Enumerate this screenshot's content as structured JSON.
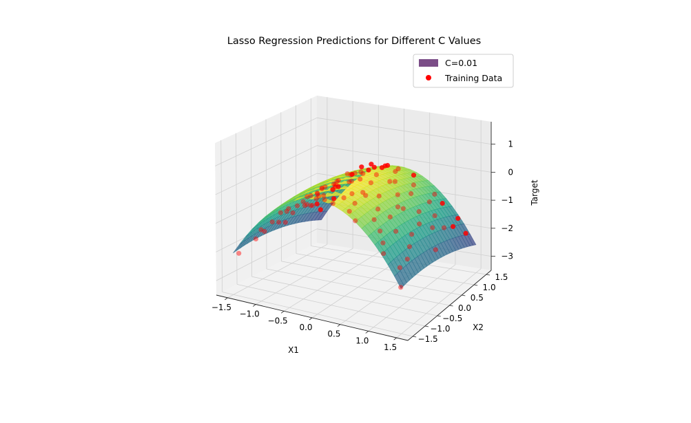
{
  "chart_data": {
    "type": "surface3d",
    "title": "Lasso Regression Predictions for Different C Values",
    "xlabel": "X1",
    "ylabel": "X2",
    "zlabel": "Target",
    "xlim": [
      -1.7,
      1.7
    ],
    "ylim": [
      -1.7,
      1.7
    ],
    "zlim": [
      -3.5,
      1.8
    ],
    "x_ticks": [
      -1.5,
      -1.0,
      -0.5,
      0.0,
      0.5,
      1.0,
      1.5
    ],
    "x_tick_labels": [
      "−1.5",
      "−1.0",
      "−0.5",
      "0.0",
      "0.5",
      "1.0",
      "1.5"
    ],
    "y_ticks": [
      -1.5,
      -1.0,
      -0.5,
      0.0,
      0.5,
      1.0,
      1.5
    ],
    "y_tick_labels": [
      "−1.5",
      "−1.0",
      "−0.5",
      "0.0",
      "0.5",
      "1.0",
      "1.5"
    ],
    "z_ticks": [
      -3,
      -2,
      -1,
      0,
      1
    ],
    "z_tick_labels": [
      "−3",
      "−2",
      "−1",
      "0",
      "1"
    ],
    "grid": true,
    "colormap": "viridis",
    "legend": {
      "placement": "top-right",
      "entries": [
        {
          "label": "C=0.01",
          "color": "#7b4d87",
          "marker": "patch"
        },
        {
          "label": "Training Data",
          "color": "#ff0000",
          "marker": "circle"
        }
      ]
    },
    "series": [
      {
        "name": "C=0.01",
        "kind": "surface",
        "surface_x_range": [
          -1.5,
          1.5
        ],
        "surface_y_range": [
          -1.5,
          1.5
        ],
        "approx_z_range": [
          -3.1,
          0.4
        ],
        "alpha": 0.7
      },
      {
        "name": "Training Data",
        "kind": "scatter",
        "color": "#ff0000",
        "points": [
          [
            -0.1,
            -1.3,
            0.2
          ],
          [
            0.0,
            -1.2,
            0.15
          ],
          [
            0.1,
            -1.1,
            0.0
          ],
          [
            -0.2,
            -0.9,
            0.3
          ],
          [
            0.15,
            -0.8,
            0.05
          ],
          [
            -0.05,
            -0.7,
            0.3
          ],
          [
            0.2,
            -0.6,
            0.1
          ],
          [
            -0.15,
            -0.5,
            0.25
          ],
          [
            0.05,
            -0.4,
            0.35
          ],
          [
            0.25,
            -0.3,
            0.0
          ],
          [
            -0.25,
            -0.2,
            0.2
          ],
          [
            0.1,
            -0.1,
            0.3
          ],
          [
            -0.1,
            0.0,
            0.35
          ],
          [
            0.2,
            0.1,
            0.1
          ],
          [
            0.0,
            0.2,
            0.3
          ],
          [
            -0.2,
            0.3,
            0.2
          ],
          [
            0.15,
            0.4,
            0.2
          ],
          [
            -0.05,
            0.5,
            0.25
          ],
          [
            0.3,
            0.6,
            -0.1
          ],
          [
            -0.3,
            0.7,
            0.0
          ],
          [
            0.05,
            0.8,
            0.2
          ],
          [
            -0.15,
            0.9,
            0.1
          ],
          [
            0.2,
            1.0,
            0.0
          ],
          [
            0.0,
            1.1,
            0.1
          ],
          [
            -0.1,
            1.2,
            0.0
          ],
          [
            0.1,
            1.3,
            -0.1
          ],
          [
            0.05,
            -1.0,
            0.4
          ],
          [
            -0.05,
            0.6,
            0.4
          ],
          [
            0.3,
            -0.9,
            -0.3
          ],
          [
            -0.3,
            -1.1,
            -0.2
          ],
          [
            -0.9,
            -1.0,
            -0.7
          ],
          [
            -1.0,
            -0.6,
            -0.9
          ],
          [
            -1.1,
            -0.2,
            -1.2
          ],
          [
            -0.8,
            0.1,
            -0.6
          ],
          [
            -1.2,
            0.4,
            -1.3
          ],
          [
            -0.7,
            0.6,
            -0.4
          ],
          [
            -0.9,
            0.9,
            -0.8
          ],
          [
            -1.0,
            1.2,
            -1.0
          ],
          [
            -0.6,
            -1.3,
            -0.3
          ],
          [
            -1.3,
            -0.8,
            -1.6
          ],
          [
            -1.3,
            1.0,
            -1.6
          ],
          [
            -1.1,
            -1.3,
            -1.2
          ],
          [
            -0.8,
            -0.4,
            -0.6
          ],
          [
            -0.6,
            0.3,
            -0.3
          ],
          [
            -0.5,
            1.1,
            -0.1
          ],
          [
            -1.2,
            -0.5,
            -1.4
          ],
          [
            -0.7,
            -0.8,
            -0.5
          ],
          [
            -0.9,
            0.5,
            -0.9
          ],
          [
            -1.4,
            0.1,
            -1.8
          ],
          [
            -0.5,
            -0.2,
            -0.1
          ],
          [
            -0.6,
            0.9,
            -0.3
          ],
          [
            -1.1,
            0.7,
            -1.1
          ],
          [
            -0.8,
            1.3,
            -0.8
          ],
          [
            -1.3,
            -1.1,
            -1.7
          ],
          [
            -0.4,
            -0.9,
            0.0
          ],
          [
            -1.0,
            -1.1,
            -1.0
          ],
          [
            -0.75,
            0.0,
            -0.5
          ],
          [
            -1.05,
            0.2,
            -1.1
          ],
          [
            -0.65,
            -0.55,
            -0.3
          ],
          [
            -1.25,
            0.75,
            -1.5
          ],
          [
            0.9,
            -1.0,
            -0.7
          ],
          [
            1.0,
            -0.6,
            -0.9
          ],
          [
            1.1,
            -0.2,
            -1.2
          ],
          [
            0.8,
            0.1,
            -0.6
          ],
          [
            1.2,
            0.4,
            -1.3
          ],
          [
            0.7,
            0.6,
            -0.4
          ],
          [
            0.9,
            0.9,
            -0.8
          ],
          [
            1.0,
            1.2,
            -1.0
          ],
          [
            0.6,
            -1.3,
            -0.3
          ],
          [
            1.3,
            -0.8,
            -1.6
          ],
          [
            1.3,
            1.0,
            -1.6
          ],
          [
            1.1,
            -1.3,
            -1.2
          ],
          [
            0.8,
            -0.4,
            -0.6
          ],
          [
            0.6,
            0.3,
            -0.3
          ],
          [
            0.5,
            1.1,
            -0.1
          ],
          [
            1.2,
            -0.5,
            -1.4
          ],
          [
            0.7,
            -0.8,
            -0.5
          ],
          [
            0.9,
            0.5,
            -0.9
          ],
          [
            1.4,
            0.1,
            -1.8
          ],
          [
            0.5,
            -0.2,
            -0.1
          ],
          [
            0.6,
            0.9,
            -0.3
          ],
          [
            1.1,
            0.7,
            -1.1
          ],
          [
            0.8,
            1.3,
            -0.8
          ],
          [
            1.3,
            -1.1,
            -1.7
          ],
          [
            0.4,
            -0.9,
            0.0
          ],
          [
            1.0,
            -1.1,
            -1.0
          ],
          [
            0.75,
            0.0,
            -0.5
          ],
          [
            1.05,
            0.2,
            -1.1
          ],
          [
            0.65,
            -0.55,
            -0.3
          ],
          [
            1.25,
            0.75,
            -1.5
          ],
          [
            1.4,
            1.3,
            -2.0
          ],
          [
            1.2,
            1.4,
            -1.6
          ],
          [
            -1.4,
            1.3,
            -2.0
          ],
          [
            -1.2,
            1.4,
            -1.6
          ],
          [
            1.45,
            -1.4,
            -2.1
          ],
          [
            -1.45,
            -1.4,
            -2.1
          ],
          [
            0.45,
            0.5,
            0.0
          ],
          [
            -0.45,
            0.5,
            0.0
          ],
          [
            0.4,
            -0.5,
            0.05
          ],
          [
            -0.4,
            -0.5,
            0.05
          ]
        ]
      }
    ]
  }
}
